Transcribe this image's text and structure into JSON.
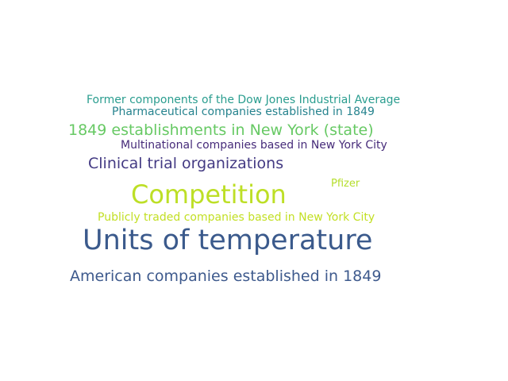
{
  "word_cloud": {
    "words": [
      {
        "text": "Former components of the Dow Jones Industrial Average",
        "color": "#2a9d8f"
      },
      {
        "text": "Pharmaceutical companies established in 1849",
        "color": "#26838e"
      },
      {
        "text": "1849 establishments in New York (state)",
        "color": "#67c964"
      },
      {
        "text": "Multinational companies based in New York City",
        "color": "#472c7a"
      },
      {
        "text": "Clinical trial organizations",
        "color": "#433a83"
      },
      {
        "text": "Pfizer",
        "color": "#b5de2b"
      },
      {
        "text": "Competition",
        "color": "#bddf26"
      },
      {
        "text": "Publicly traded companies based in New York City",
        "color": "#c2df23"
      },
      {
        "text": "Units of temperature",
        "color": "#3b5a8c"
      },
      {
        "text": "American companies established in 1849",
        "color": "#3e5a8d"
      }
    ]
  }
}
